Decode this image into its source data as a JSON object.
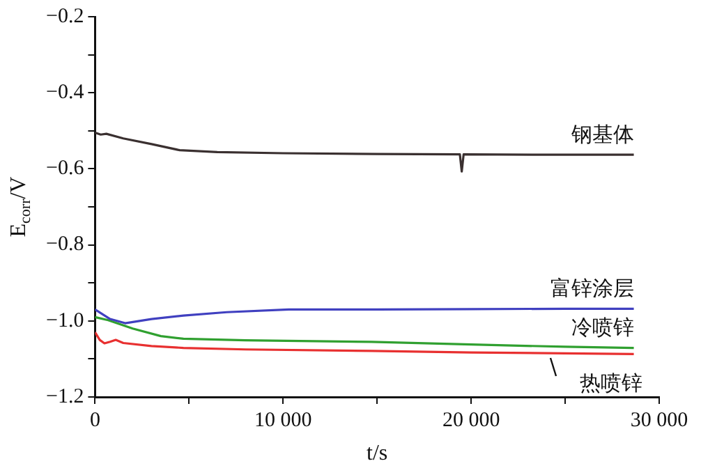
{
  "chart_data": {
    "type": "line",
    "xlabel": "t/s",
    "ylabel": "E$_{corr}$/V",
    "xlim": [
      0,
      30000
    ],
    "ylim": [
      -1.2,
      -0.2
    ],
    "xticks": [
      0,
      {
        "value": 5000,
        "label": null
      },
      {
        "value": 10000,
        "label": "10 000"
      },
      {
        "value": 15000,
        "label": null
      },
      {
        "value": 20000,
        "label": "20 000"
      },
      {
        "value": 25000,
        "label": null
      },
      {
        "value": 30000,
        "label": "30 000"
      }
    ],
    "yticks": [
      {
        "value": -1.2,
        "label": "−1.2"
      },
      {
        "value": -1.1,
        "label": null
      },
      {
        "value": -1.0,
        "label": "−1.0"
      },
      {
        "value": -0.9,
        "label": null
      },
      {
        "value": -0.8,
        "label": "−0.8"
      },
      {
        "value": -0.7,
        "label": null
      },
      {
        "value": -0.6,
        "label": "−0.6"
      },
      {
        "value": -0.5,
        "label": null
      },
      {
        "value": -0.4,
        "label": "−0.4"
      },
      {
        "value": -0.3,
        "label": null
      },
      {
        "value": -0.2,
        "label": "−0.2"
      }
    ],
    "grid": false,
    "legend": false,
    "marker": "none",
    "line_style": "solid",
    "series": [
      {
        "name": "钢基体",
        "color": "#3a3030",
        "x": [
          0,
          300,
          600,
          1500,
          3000,
          4500,
          6500,
          10000,
          15000,
          19400,
          19500,
          19600,
          24000,
          28650
        ],
        "values": [
          -0.505,
          -0.51,
          -0.508,
          -0.52,
          -0.535,
          -0.551,
          -0.556,
          -0.559,
          -0.561,
          -0.562,
          -0.607,
          -0.562,
          -0.563,
          -0.563
        ]
      },
      {
        "name": "富锌涂层",
        "color": "#4040c0",
        "x": [
          0,
          800,
          1600,
          3000,
          4700,
          7000,
          10300,
          15000,
          20000,
          25000,
          28650
        ],
        "values": [
          -0.97,
          -0.995,
          -1.006,
          -0.995,
          -0.986,
          -0.977,
          -0.97,
          -0.97,
          -0.969,
          -0.968,
          -0.968
        ]
      },
      {
        "name": "冷喷锌",
        "color": "#30a030",
        "x": [
          0,
          700,
          2000,
          3500,
          4700,
          8000,
          14700,
          20000,
          25000,
          28650
        ],
        "values": [
          -0.99,
          -0.998,
          -1.02,
          -1.04,
          -1.047,
          -1.051,
          -1.055,
          -1.062,
          -1.068,
          -1.071
        ]
      },
      {
        "name": "热喷锌",
        "color": "#e83030",
        "x": [
          0,
          250,
          500,
          800,
          1100,
          1500,
          3000,
          4700,
          8000,
          14700,
          20000,
          28650
        ],
        "values": [
          -1.03,
          -1.05,
          -1.059,
          -1.055,
          -1.05,
          -1.058,
          -1.066,
          -1.071,
          -1.075,
          -1.079,
          -1.083,
          -1.087
        ]
      }
    ]
  }
}
